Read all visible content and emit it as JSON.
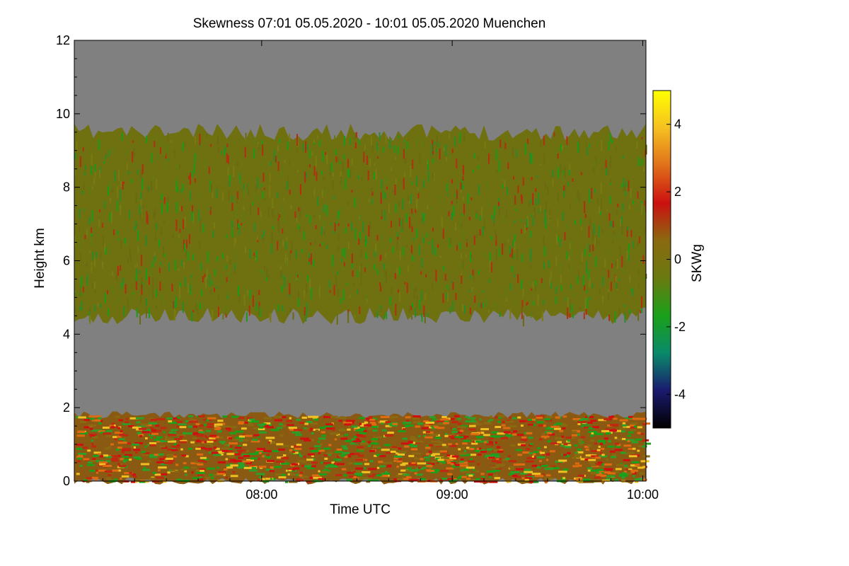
{
  "chart_data": {
    "type": "heatmap",
    "title": "Skewness   07:01 05.05.2020 - 10:01 05.05.2020 Muenchen",
    "xlabel": "Time UTC",
    "ylabel": "Height km",
    "xlim": [
      "07:01",
      "10:01"
    ],
    "ylim": [
      0,
      12
    ],
    "x_ticks": [
      "08:00",
      "09:00",
      "10:00"
    ],
    "y_ticks": [
      0,
      2,
      4,
      6,
      8,
      10,
      12
    ],
    "colorbar": {
      "label": "SKWg",
      "range": [
        -5,
        5
      ],
      "ticks": [
        -4,
        -2,
        0,
        2,
        4
      ],
      "colors": [
        "#000000",
        "#1a1a6e",
        "#0a8a6a",
        "#1aa01a",
        "#6a7a10",
        "#8a6a10",
        "#cc1010",
        "#e0701a",
        "#f5c020",
        "#ffff00"
      ]
    },
    "no_data_color": "#808080",
    "layers": [
      {
        "name": "upper signal",
        "bottom_km": 4.5,
        "top_km": 9.5,
        "dominant_skewness": 0
      },
      {
        "name": "boundary layer",
        "bottom_km": 0,
        "top_km": 2.2,
        "dominant_skewness": 1
      }
    ]
  }
}
